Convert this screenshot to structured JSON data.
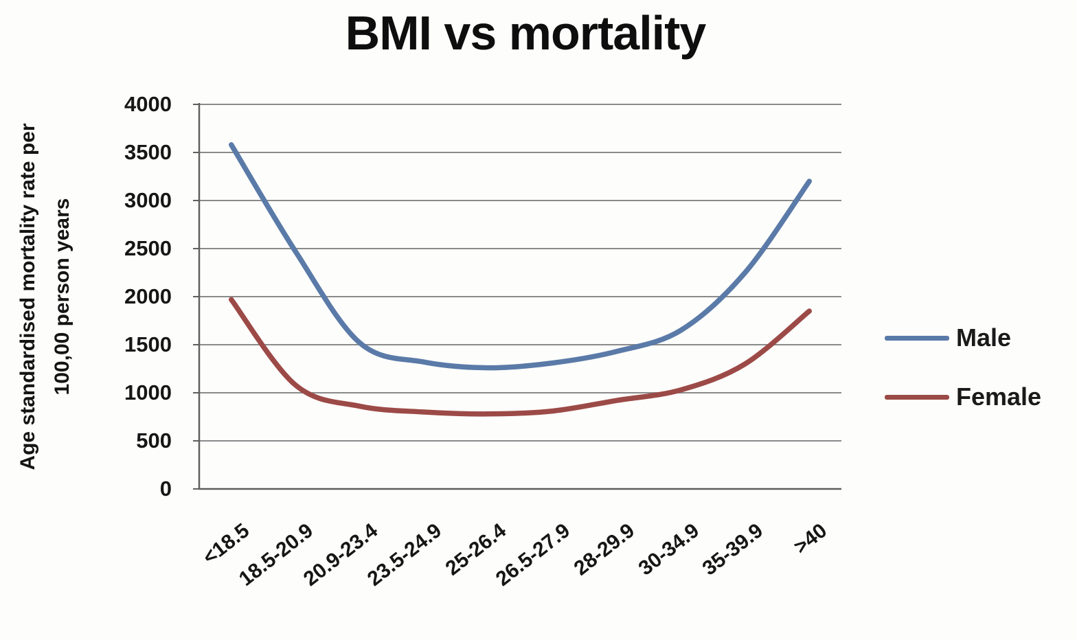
{
  "title": "BMI vs mortality",
  "y_axis": {
    "label_line1": "Age standardised mortality rate per",
    "label_line2": "100,00 person years",
    "tick_labels": [
      "0",
      "500",
      "1000",
      "1500",
      "2000",
      "2500",
      "3000",
      "3500",
      "4000"
    ]
  },
  "legend": {
    "items": [
      {
        "label": "Male",
        "color": "#5a7aa8"
      },
      {
        "label": "Female",
        "color": "#9c4a47"
      }
    ]
  },
  "chart_data": {
    "type": "line",
    "title": "BMI vs mortality",
    "ylabel": "Age standardised mortality rate per 100,00 person years",
    "xlabel": "",
    "categories": [
      "<18.5",
      "18.5-20.9",
      "20.9-23.4",
      "23.5-24.9",
      "25-26.4",
      "26.5-27.9",
      "28-29.9",
      "30-34.9",
      "35-39.9",
      ">40"
    ],
    "series": [
      {
        "name": "Male",
        "color": "#5a7aa8",
        "values": [
          3580,
          2470,
          1520,
          1320,
          1260,
          1310,
          1430,
          1650,
          2250,
          3200
        ]
      },
      {
        "name": "Female",
        "color": "#9c4a47",
        "values": [
          1970,
          1080,
          860,
          800,
          780,
          810,
          920,
          1030,
          1300,
          1850
        ]
      }
    ],
    "ylim": [
      0,
      4000
    ],
    "ytick_step": 500,
    "grid": true,
    "smooth": true,
    "legend_position": "right"
  }
}
